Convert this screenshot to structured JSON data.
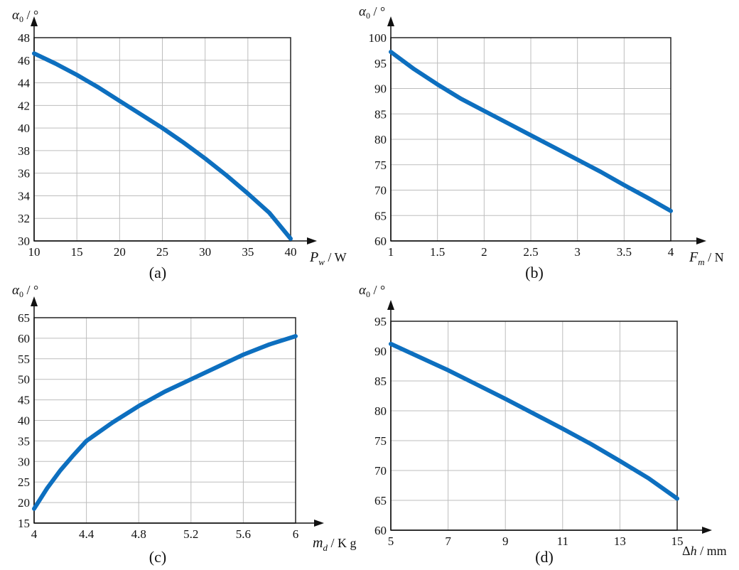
{
  "chart_data": [
    {
      "type": "line",
      "caption": "(a)",
      "ylabel": "α0 / °",
      "xlabel": "Pw / W",
      "xlim": [
        10,
        40
      ],
      "ylim": [
        30,
        48
      ],
      "xticks": [
        10,
        15,
        20,
        25,
        30,
        35,
        40
      ],
      "yticks": [
        30,
        32,
        34,
        36,
        38,
        40,
        42,
        44,
        46,
        48
      ],
      "grid": true,
      "series": [
        {
          "x": [
            10,
            12.5,
            15,
            17.5,
            20,
            22.5,
            25,
            27.5,
            30,
            32.5,
            35,
            37.5,
            40
          ],
          "y": [
            46.6,
            45.7,
            44.7,
            43.6,
            42.4,
            41.2,
            40.0,
            38.7,
            37.3,
            35.8,
            34.2,
            32.5,
            30.2
          ]
        }
      ]
    },
    {
      "type": "line",
      "caption": "(b)",
      "ylabel": "α0 / °",
      "xlabel": "Fm / N",
      "xlim": [
        1,
        4
      ],
      "ylim": [
        60,
        100
      ],
      "xticks": [
        1,
        1.5,
        2,
        2.5,
        3,
        3.5,
        4
      ],
      "yticks": [
        60,
        65,
        70,
        75,
        80,
        85,
        90,
        95,
        100
      ],
      "grid": true,
      "series": [
        {
          "x": [
            1,
            1.25,
            1.5,
            1.75,
            2,
            2.25,
            2.5,
            2.75,
            3,
            3.25,
            3.5,
            3.75,
            4
          ],
          "y": [
            97.2,
            93.8,
            90.8,
            88.0,
            85.6,
            83.2,
            80.8,
            78.4,
            76.0,
            73.6,
            71.0,
            68.5,
            65.9
          ]
        }
      ]
    },
    {
      "type": "line",
      "caption": "(c)",
      "ylabel": "α0 / °",
      "xlabel": "md / K g",
      "xlim": [
        4,
        6
      ],
      "ylim": [
        15,
        65
      ],
      "xticks": [
        4,
        4.4,
        4.8,
        5.2,
        5.6,
        6
      ],
      "yticks": [
        15,
        20,
        25,
        30,
        35,
        40,
        45,
        50,
        55,
        60,
        65
      ],
      "grid": true,
      "series": [
        {
          "x": [
            4,
            4.1,
            4.2,
            4.3,
            4.4,
            4.6,
            4.8,
            5.0,
            5.2,
            5.4,
            5.6,
            5.8,
            6.0
          ],
          "y": [
            18.5,
            23.5,
            27.8,
            31.5,
            35.0,
            39.5,
            43.5,
            47.0,
            50.0,
            53.0,
            56.0,
            58.5,
            60.5
          ]
        }
      ]
    },
    {
      "type": "line",
      "caption": "(d)",
      "ylabel": "α0 / °",
      "xlabel": "Δh / mm",
      "xlim": [
        5,
        15
      ],
      "ylim": [
        60,
        95
      ],
      "xticks": [
        5,
        7,
        9,
        11,
        13,
        15
      ],
      "yticks": [
        60,
        65,
        70,
        75,
        80,
        85,
        90,
        95
      ],
      "grid": true,
      "series": [
        {
          "x": [
            5,
            6,
            7,
            8,
            9,
            10,
            11,
            12,
            13,
            14,
            15
          ],
          "y": [
            91.2,
            89.0,
            86.8,
            84.4,
            82.0,
            79.5,
            77.0,
            74.4,
            71.6,
            68.7,
            65.3
          ]
        }
      ]
    }
  ],
  "colors": {
    "line": "#0d6fbf",
    "grid": "#bdbdbd",
    "axis": "#111111"
  }
}
